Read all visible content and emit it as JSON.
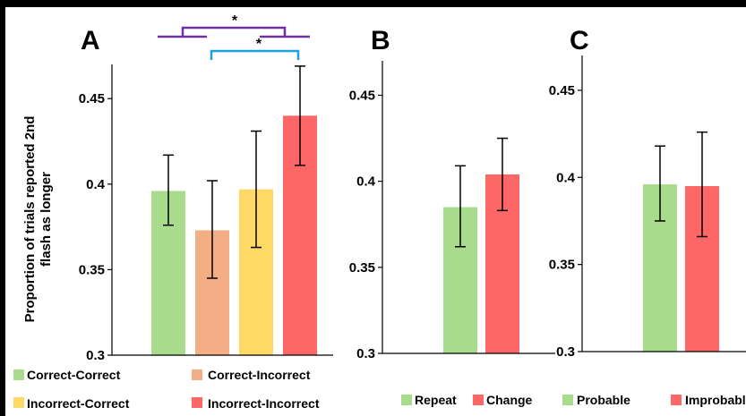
{
  "colors": {
    "green": "#A9DB8D",
    "salmon": "#F3AE86",
    "yellow": "#FFD966",
    "red": "#FF6666",
    "purple": "#7030A0",
    "cyan": "#1BA1E2"
  },
  "chart_data": [
    {
      "panel": "A",
      "type": "bar",
      "ylabel_line1": "Proportion of trials reported 2nd",
      "ylabel_line2": "flash as longer",
      "ylim": [
        0.3,
        0.47
      ],
      "yticks": [
        "0.3",
        "0.35",
        "0.4",
        "0.45"
      ],
      "ytick_values": [
        0.3,
        0.35,
        0.4,
        0.45
      ],
      "grid": false,
      "categories": [
        "Correct-Correct",
        "Correct-Incorrect",
        "Incorrect-Correct",
        "Incorrect-Incorrect"
      ],
      "values": [
        0.396,
        0.373,
        0.397,
        0.44
      ],
      "err_low": [
        0.376,
        0.345,
        0.363,
        0.411
      ],
      "err_high": [
        0.417,
        0.402,
        0.431,
        0.469
      ],
      "bar_colors": [
        "#A9DB8D",
        "#F3AE86",
        "#FFD966",
        "#FF6666"
      ],
      "significance": [
        {
          "label": "*",
          "from": "Correct-Correct",
          "to": "Incorrect-Incorrect",
          "color": "#7030A0"
        },
        {
          "label": "*",
          "from": "Incorrect-Correct",
          "to": "Incorrect-Incorrect",
          "color": "#1BA1E2"
        }
      ]
    },
    {
      "panel": "B",
      "type": "bar",
      "ylim": [
        0.3,
        0.47
      ],
      "yticks": [
        "0.3",
        "0.35",
        "0.4",
        "0.45"
      ],
      "ytick_values": [
        0.3,
        0.35,
        0.4,
        0.45
      ],
      "grid": false,
      "categories": [
        "Repeat",
        "Change"
      ],
      "values": [
        0.385,
        0.404
      ],
      "err_low": [
        0.362,
        0.383
      ],
      "err_high": [
        0.409,
        0.425
      ],
      "bar_colors": [
        "#A9DB8D",
        "#FF6666"
      ]
    },
    {
      "panel": "C",
      "type": "bar",
      "ylim": [
        0.3,
        0.47
      ],
      "yticks": [
        "0.3",
        "0.35",
        "0.4",
        "0.45"
      ],
      "ytick_values": [
        0.3,
        0.35,
        0.4,
        0.45
      ],
      "grid": false,
      "categories": [
        "Probable",
        "Improbable"
      ],
      "values": [
        0.396,
        0.395
      ],
      "err_low": [
        0.375,
        0.366
      ],
      "err_high": [
        0.418,
        0.426
      ],
      "bar_colors": [
        "#A9DB8D",
        "#FF6666"
      ]
    }
  ]
}
